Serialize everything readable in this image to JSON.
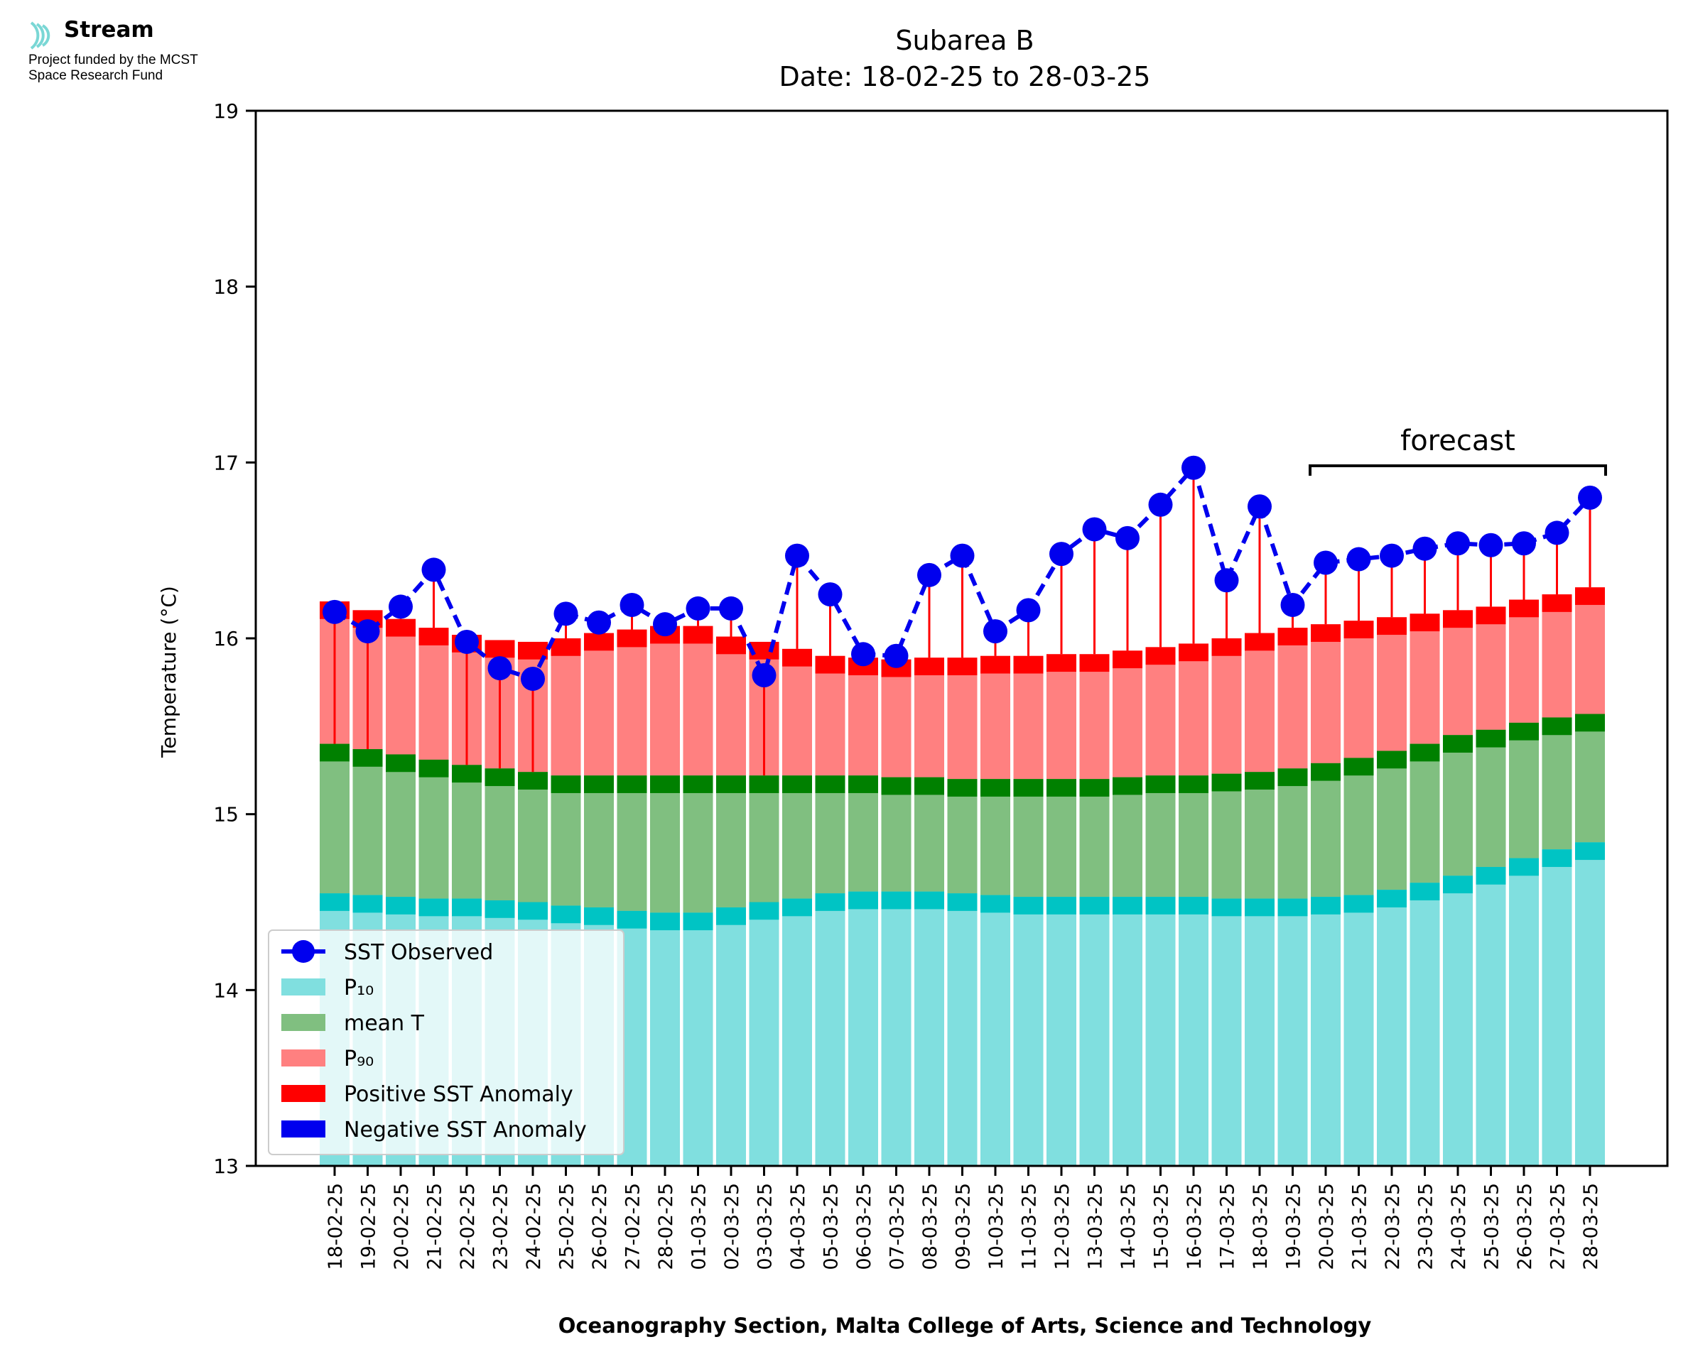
{
  "branding": {
    "name": "Stream",
    "funding_line1": "Project funded by the MCST",
    "funding_line2": "Space Research Fund",
    "icon": "stream-wave-icon",
    "color": "#7ad7d5"
  },
  "chart_data": {
    "type": "bar",
    "title": "Subarea B",
    "subtitle": "Date: 18-02-25 to 28-03-25",
    "xlabel": "Oceanography Section, Malta College of Arts, Science and Technology",
    "ylabel": "Temperature (°C)",
    "ylim": [
      13,
      19
    ],
    "yticks": [
      13,
      14,
      15,
      16,
      17,
      18,
      19
    ],
    "grid": false,
    "legend_position": "lower-left",
    "categories": [
      "18-02-25",
      "19-02-25",
      "20-02-25",
      "21-02-25",
      "22-02-25",
      "23-02-25",
      "24-02-25",
      "25-02-25",
      "26-02-25",
      "27-02-25",
      "28-02-25",
      "01-03-25",
      "02-03-25",
      "03-03-25",
      "04-03-25",
      "05-03-25",
      "06-03-25",
      "07-03-25",
      "08-03-25",
      "09-03-25",
      "10-03-25",
      "11-03-25",
      "12-03-25",
      "13-03-25",
      "14-03-25",
      "15-03-25",
      "16-03-25",
      "17-03-25",
      "18-03-25",
      "19-03-25",
      "20-03-25",
      "21-03-25",
      "22-03-25",
      "23-03-25",
      "24-03-25",
      "25-03-25",
      "26-03-25",
      "27-03-25",
      "28-03-25"
    ],
    "series": [
      {
        "name": "SST Observed",
        "kind": "line",
        "color": "#0000ee",
        "values": [
          16.15,
          16.04,
          16.18,
          16.39,
          15.98,
          15.83,
          15.77,
          16.14,
          16.09,
          16.19,
          16.08,
          16.17,
          16.17,
          15.79,
          16.47,
          16.25,
          15.91,
          15.9,
          16.36,
          16.47,
          16.04,
          16.16,
          16.48,
          16.62,
          16.57,
          16.76,
          16.97,
          16.33,
          16.75,
          16.19,
          16.43,
          16.45,
          16.47,
          16.51,
          16.54,
          16.53,
          16.54,
          16.6,
          16.8
        ]
      },
      {
        "name": "P₁₀",
        "kind": "bar",
        "color": "#80dfdf",
        "band_color": "#00c4c4",
        "values": [
          14.55,
          14.54,
          14.53,
          14.52,
          14.52,
          14.51,
          14.5,
          14.48,
          14.47,
          14.45,
          14.44,
          14.44,
          14.47,
          14.5,
          14.52,
          14.55,
          14.56,
          14.56,
          14.56,
          14.55,
          14.54,
          14.53,
          14.53,
          14.53,
          14.53,
          14.53,
          14.53,
          14.52,
          14.52,
          14.52,
          14.53,
          14.54,
          14.57,
          14.61,
          14.65,
          14.7,
          14.75,
          14.8,
          14.84
        ]
      },
      {
        "name": "mean T",
        "kind": "bar",
        "color": "#80bf80",
        "band_color": "#008000",
        "values": [
          15.4,
          15.37,
          15.34,
          15.31,
          15.28,
          15.26,
          15.24,
          15.22,
          15.22,
          15.22,
          15.22,
          15.22,
          15.22,
          15.22,
          15.22,
          15.22,
          15.22,
          15.21,
          15.21,
          15.2,
          15.2,
          15.2,
          15.2,
          15.2,
          15.21,
          15.22,
          15.22,
          15.23,
          15.24,
          15.26,
          15.29,
          15.32,
          15.36,
          15.4,
          15.45,
          15.48,
          15.52,
          15.55,
          15.57
        ]
      },
      {
        "name": "P₉₀",
        "kind": "bar",
        "color": "#ff8080",
        "band_color": "#ff0000",
        "values": [
          16.21,
          16.16,
          16.11,
          16.06,
          16.02,
          15.99,
          15.98,
          16.0,
          16.03,
          16.05,
          16.07,
          16.07,
          16.01,
          15.98,
          15.94,
          15.9,
          15.89,
          15.88,
          15.89,
          15.89,
          15.9,
          15.9,
          15.91,
          15.91,
          15.93,
          15.95,
          15.97,
          16.0,
          16.03,
          16.06,
          16.08,
          16.1,
          16.12,
          16.14,
          16.16,
          16.18,
          16.22,
          16.25,
          16.29
        ]
      }
    ],
    "legend": [
      {
        "label": "SST Observed",
        "swatch": "line-marker",
        "color": "#0000ee"
      },
      {
        "label": "P₁₀",
        "swatch": "patch",
        "color": "#80dfdf"
      },
      {
        "label": "mean T",
        "swatch": "patch",
        "color": "#80bf80"
      },
      {
        "label": "P₉₀",
        "swatch": "patch",
        "color": "#ff8080"
      },
      {
        "label": "Positive SST Anomaly",
        "swatch": "patch",
        "color": "#ff0000"
      },
      {
        "label": "Negative SST Anomaly",
        "swatch": "patch",
        "color": "#0000ee"
      }
    ],
    "annotation": {
      "text": "forecast",
      "from": "20-03-25",
      "to": "28-03-25"
    }
  }
}
